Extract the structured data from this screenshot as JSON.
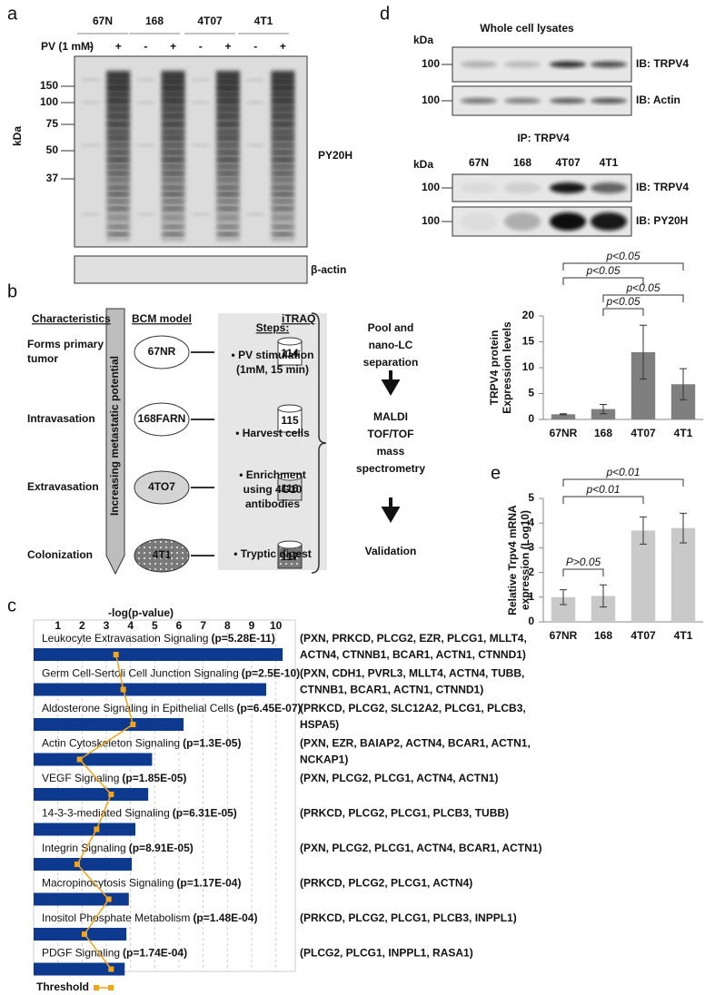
{
  "panels": {
    "a": {
      "label": "a",
      "lanes": [
        "67N",
        "168",
        "4T07",
        "4T1"
      ],
      "treatment": "PV (1 mM)",
      "signs": [
        "-",
        "+"
      ],
      "marker_unit": "kDa",
      "markers": [
        "150",
        "100",
        "75",
        "50",
        "37"
      ],
      "blot_label": "PY20H",
      "loading_label": "β-actin"
    },
    "b": {
      "label": "b",
      "headers": [
        "Characteristics",
        "BCM model",
        "iTRAQ"
      ],
      "arrow_label": "Increasing metastatic potential",
      "rows": [
        {
          "characteristic": [
            "Forms primary",
            "tumor"
          ],
          "model": "67NR",
          "tag": "114"
        },
        {
          "characteristic": [
            "Intravasation"
          ],
          "model": "168FARN",
          "tag": "115"
        },
        {
          "characteristic": [
            "Extravasation"
          ],
          "model": "4TO7",
          "tag": "116"
        },
        {
          "characteristic": [
            "Colonization"
          ],
          "model": "4T1",
          "tag": "117"
        }
      ],
      "steps_title": "Steps:",
      "steps": [
        [
          "• PV stimulation",
          "(1mM, 15 min)"
        ],
        [
          "• Harvest cells"
        ],
        [
          "• Enrichment",
          "using 4G10",
          "antibodies"
        ],
        [
          "• Tryptic digest"
        ]
      ],
      "workflow": [
        [
          "Pool and",
          "nano-LC",
          "separation"
        ],
        [
          "MALDI",
          "TOF/TOF",
          "mass",
          "spectrometry"
        ],
        [
          "Validation"
        ]
      ]
    },
    "c": {
      "label": "c"
    },
    "d": {
      "label": "d",
      "title": "Whole cell lysates",
      "unit": "kDa",
      "marker": "100",
      "ib": [
        "IB: TRPV4",
        "IB: Actin"
      ],
      "ip": "IP: TRPV4",
      "lanes": [
        "67N",
        "168",
        "4T07",
        "4T1"
      ],
      "ip_ib": [
        "IB: TRPV4",
        "IB: PY20H"
      ]
    },
    "e": {
      "label": "e"
    }
  },
  "chart_data": [
    {
      "type": "hbar",
      "x_label": "-log(p-value)",
      "categories": [
        "Leukocyte Extravasation Signaling",
        "Germ Cell-Sertoli Cell Junction Signaling",
        "Aldosterone Signaling in Epithelial Cells",
        "Actin Cytoskeleton Signaling",
        "VEGF Signaling",
        "14-3-3-mediated Signaling",
        "Integrin Signaling",
        "Macropinocytosis Signaling",
        "Inositol Phosphate Metabolism",
        "PDGF Signaling"
      ],
      "p_labels": [
        "(p=5.28E-11)",
        "(p=2.5E-10)",
        "(p=6.45E-07)",
        "(p=1.3E-05)",
        "(p=1.85E-05)",
        "(p=6.31E-05)",
        "(p=8.91E-05)",
        "(p=1.17E-04)",
        "(p=1.48E-04)",
        "(p=1.74E-04)"
      ],
      "genes": [
        [
          "(PXN, PRKCD, PLCG2, EZR, PLCG1, MLLT4,",
          "ACTN4, CTNNB1, BCAR1, ACTN1, CTNND1)"
        ],
        [
          "(PXN, CDH1, PVRL3, MLLT4, ACTN4, TUBB,",
          "CTNNB1, BCAR1, ACTN1, CTNND1)"
        ],
        [
          "(PRKCD, PLCG2, SLC12A2, PLCG1, PLCB3,",
          "HSPA5)"
        ],
        [
          "(PXN, EZR, BAIAP2, ACTN4, BCAR1, ACTN1,",
          "NCKAP1)"
        ],
        [
          "(PXN, PLCG2, PLCG1, ACTN4, ACTN1)"
        ],
        [
          "(PRKCD, PLCG2, PLCG1, PLCB3, TUBB)"
        ],
        [
          "(PXN, PLCG2, PLCG1, ACTN4, BCAR1, ACTN1)"
        ],
        [
          "(PRKCD, PLCG2, PLCG1, ACTN4)"
        ],
        [
          "(PRKCD, PLCG2, PLCG1, PLCB3, INPPL1)"
        ],
        [
          "(PLCG2, PLCG1, INPPL1, RASA1)"
        ]
      ],
      "values": [
        10.28,
        9.6,
        6.19,
        4.89,
        4.73,
        4.2,
        4.05,
        3.93,
        3.83,
        3.76
      ],
      "color": "#0d3a8e",
      "series": [
        {
          "name": "Threshold",
          "color": "#f2a516",
          "values": [
            3.4,
            3.7,
            4.1,
            1.9,
            3.2,
            2.6,
            1.8,
            3.1,
            2.1,
            3.2
          ]
        }
      ],
      "xlim": [
        0,
        10.8
      ],
      "xticks": [
        1,
        2,
        3,
        4,
        5,
        6,
        7,
        8,
        9,
        10
      ],
      "grid": true
    },
    {
      "type": "bar",
      "y_label": [
        "TRPV4 protein",
        "Expression levels"
      ],
      "categories": [
        "67NR",
        "168",
        "4T07",
        "4T1"
      ],
      "values": [
        1,
        2,
        13,
        6.8
      ],
      "errors": [
        0.1,
        0.9,
        5.2,
        3
      ],
      "color": "#7f7f7f",
      "ylim": [
        0,
        20
      ],
      "yticks": [
        0,
        5,
        10,
        15,
        20
      ],
      "comparisons": [
        {
          "from": "67NR",
          "to": "4T1",
          "label": "p<0.05"
        },
        {
          "from": "67NR",
          "to": "4T07",
          "label": "p<0.05"
        },
        {
          "from": "168",
          "to": "4T1",
          "label": "p<0.05"
        },
        {
          "from": "168",
          "to": "4T07",
          "label": "p<0.05"
        }
      ]
    },
    {
      "type": "bar",
      "y_label": [
        "Relative Trpv4 mRNA",
        "expression (Log10)"
      ],
      "categories": [
        "67NR",
        "168",
        "4T07",
        "4T1"
      ],
      "values": [
        1,
        1.05,
        3.7,
        3.8
      ],
      "errors": [
        0.3,
        0.45,
        0.55,
        0.6
      ],
      "color": "#c9c9c9",
      "ylim": [
        0,
        5
      ],
      "yticks": [
        0,
        1,
        2,
        3,
        4,
        5
      ],
      "comparisons": [
        {
          "from": "67NR",
          "to": "4T1",
          "label": "p<0.01"
        },
        {
          "from": "67NR",
          "to": "4T07",
          "label": "p<0.01"
        },
        {
          "from": "67NR",
          "to": "168",
          "label": "P>0.05"
        }
      ]
    }
  ]
}
